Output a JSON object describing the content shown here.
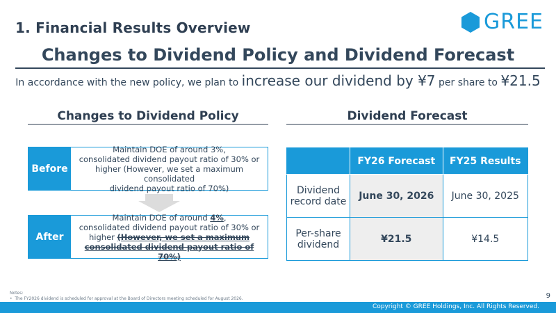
{
  "slide": {
    "section_title": "1. Financial Results Overview",
    "logo_text": "GREE",
    "title": "Changes to Dividend Policy and Dividend Forecast",
    "lead": {
      "part1": "In accordance with the new policy, we plan to ",
      "part2": "increase our dividend by ¥7",
      "part3": " per share to ",
      "part4": "¥21.5"
    }
  },
  "policy": {
    "heading": "Changes to Dividend Policy",
    "before": {
      "label": "Before",
      "line1": "Maintain DOE of around 3%,",
      "line2": "consolidated dividend payout ratio of 30% or",
      "line3": "higher (However, we set a maximum consolidated",
      "line4": "dividend payout ratio of 70%)"
    },
    "after": {
      "label": "After",
      "line1_prefix": "Maintain DOE of around ",
      "line1_emph": "4%",
      "line1_suffix": ",",
      "line2": "consolidated dividend payout ratio of 30% or",
      "line3_prefix": "higher ",
      "line3_strike": "(However, we set a maximum",
      "line4_strike": "consolidated dividend payout ratio of 70%)"
    }
  },
  "forecast": {
    "heading": "Dividend Forecast",
    "columns": [
      "",
      "FY26 Forecast",
      "FY25 Results"
    ],
    "rows": [
      {
        "label_line1": "Dividend",
        "label_line2": "record date",
        "fy26": "June 30, 2026",
        "fy25": "June 30, 2025"
      },
      {
        "label_line1": "Per-share",
        "label_line2": "dividend",
        "fy26": "¥21.5",
        "fy25": "¥14.5"
      }
    ]
  },
  "footer": {
    "notes_title": "Notes:",
    "note1": "The FY2026 dividend is scheduled for approval at the Board of Directors meeting scheduled for August 2026.",
    "page_number": "9",
    "copyright": "Copyright © GREE Holdings, Inc. All Rights Reserved."
  },
  "colors": {
    "accent": "#1a9ad9",
    "text": "#33475b",
    "highlight_cell": "#eeeeee"
  },
  "icons": {
    "logo": "hexagon-logo-icon",
    "arrow": "down-arrow-icon"
  }
}
